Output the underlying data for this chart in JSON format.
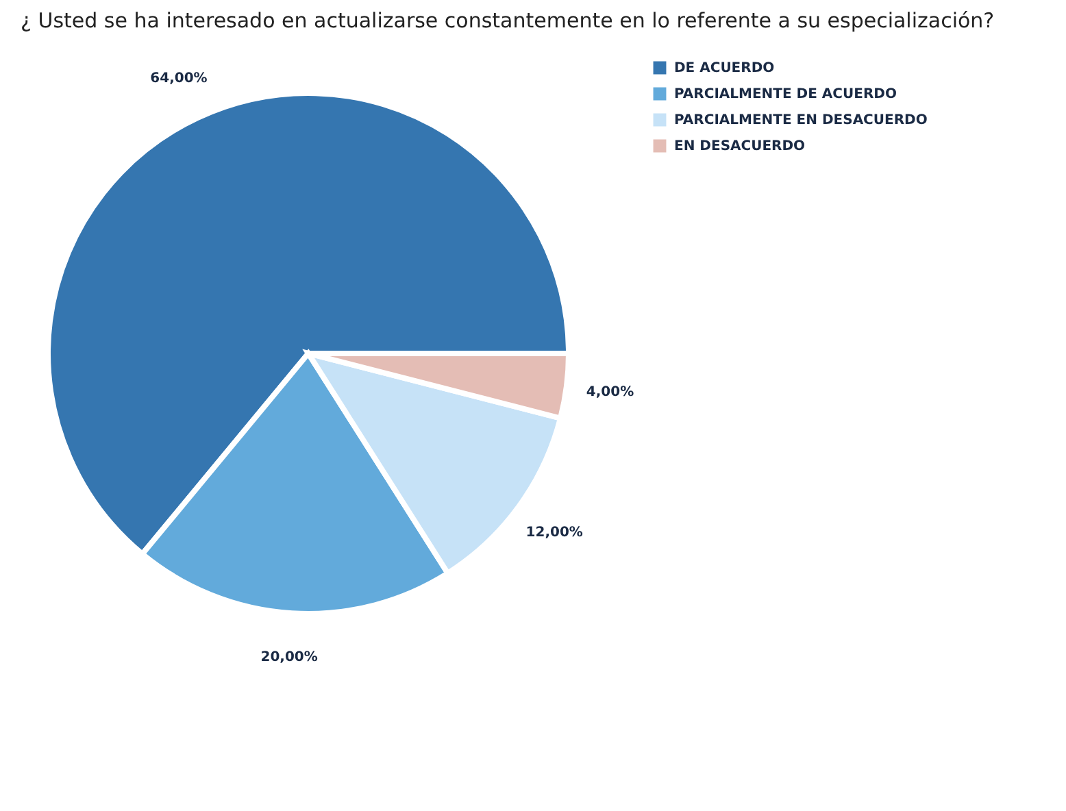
{
  "chart_data": {
    "type": "pie",
    "title": "¿ Usted se ha interesado en actualizarse constantemente en lo referente a su especialización?",
    "categories": [
      "DE ACUERDO",
      "PARCIALMENTE DE ACUERDO",
      "PARCIALMENTE EN DESACUERDO",
      "EN DESACUERDO"
    ],
    "values": [
      64,
      20,
      12,
      4
    ],
    "colors": [
      "#3576b0",
      "#62aadb",
      "#c6e2f7",
      "#e4bdb5"
    ],
    "value_labels": [
      "64,00%",
      "20,00%",
      "12,00%",
      "4,00%"
    ],
    "legend": "top right"
  }
}
